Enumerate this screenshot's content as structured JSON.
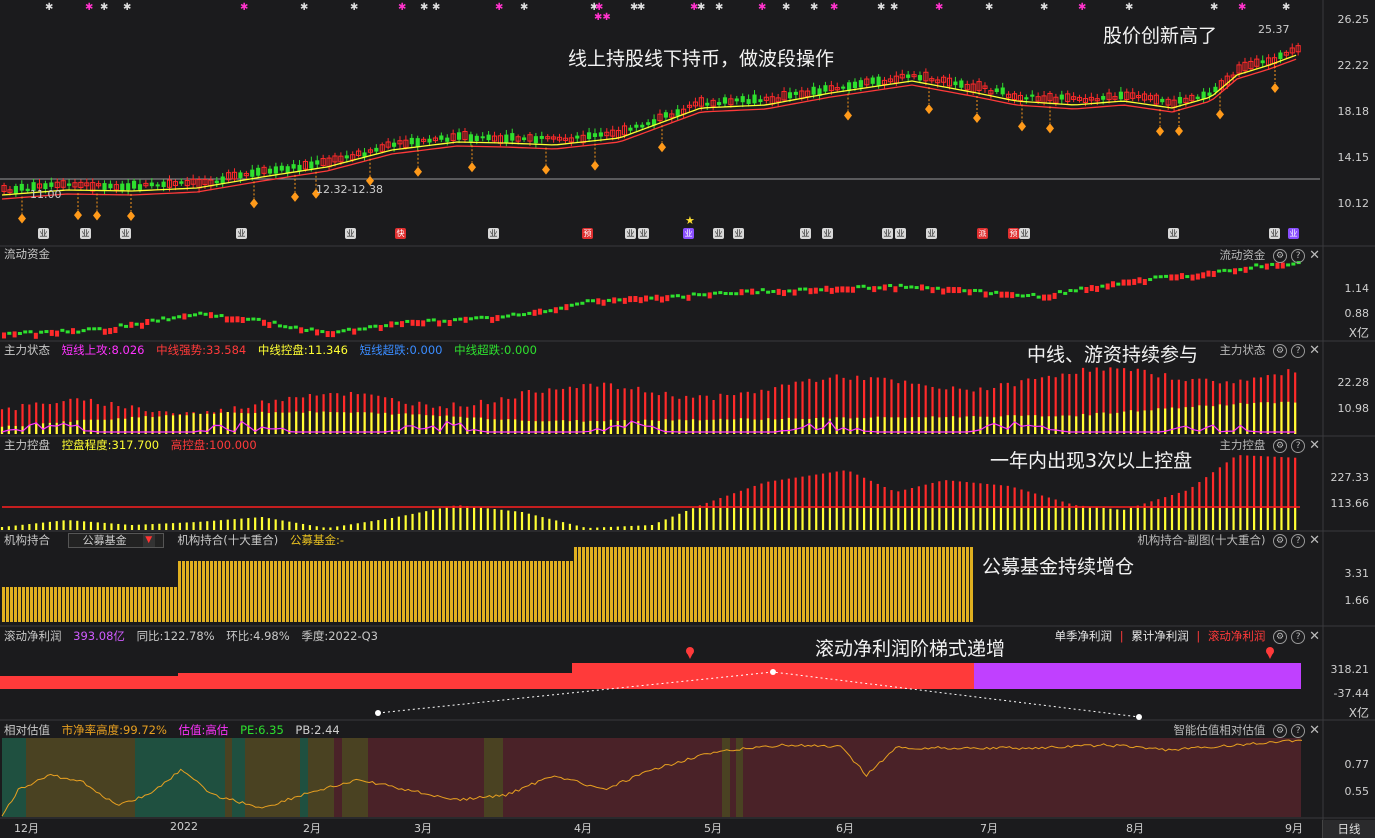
{
  "colors": {
    "up": "#ff2a2a",
    "down": "#2ee02e",
    "ma_fast": "#ffff33",
    "ma_slow": "#ff3a3a",
    "bg": "#1b1b1d"
  },
  "price_panel": {
    "axis": [
      "26.25",
      "22.22",
      "18.18",
      "14.15",
      "10.12"
    ],
    "high_label": "25.37",
    "low_label": "11.00",
    "range_label": "12.32-12.38",
    "annot_1": "线上持股线下持币，做波段操作",
    "annot_2": "股价创新高了",
    "event_badges": [
      "业",
      "业",
      "业",
      "业",
      "业",
      "快",
      "业",
      "预",
      "业",
      "业",
      "业",
      "业",
      "业",
      "业",
      "业",
      "业",
      "业",
      "业",
      "派",
      "预",
      "业",
      "业",
      "业",
      "业"
    ]
  },
  "liquid_panel": {
    "title": "流动资金",
    "right_title": "流动资金",
    "axis": [
      "1.14",
      "0.88"
    ],
    "unit": "X亿"
  },
  "main_state_panel": {
    "title": "主力状态",
    "right_title": "主力状态",
    "fields": [
      {
        "label": "短线上攻:8.026",
        "color": "#ff33ff"
      },
      {
        "label": "中线强势:33.584",
        "color": "#ff3a3a"
      },
      {
        "label": "中线控盘:11.346",
        "color": "#ffff33"
      },
      {
        "label": "短线超跌:0.000",
        "color": "#3a8cff"
      },
      {
        "label": "中线超跌:0.000",
        "color": "#2ee02e"
      }
    ],
    "axis": [
      "22.28",
      "10.98"
    ],
    "annot": "中线、游资持续参与"
  },
  "control_panel": {
    "title": "主力控盘",
    "right_title": "主力控盘",
    "fields": [
      {
        "label": "控盘程度:317.700",
        "color": "#ffff33"
      },
      {
        "label": "高控盘:100.000",
        "color": "#ff3a3a"
      }
    ],
    "axis": [
      "227.33",
      "113.66"
    ],
    "annot": "一年内出现3次以上控盘"
  },
  "inst_panel": {
    "title": "机构持合",
    "dropdown_value": "公募基金",
    "subtitle": "机构持合(十大重合)",
    "fund_label": "公募基金:-",
    "right_title": "机构持合-副图(十大重合)",
    "axis": [
      "3.31",
      "1.66"
    ],
    "annot": "公募基金持续增仓"
  },
  "profit_panel": {
    "title": "滚动净利润",
    "value": "393.08亿",
    "yoy": "同比:122.78%",
    "qoq": "环比:4.98%",
    "season": "季度:2022-Q3",
    "tabs": [
      "单季净利润",
      "累计净利润",
      "滚动净利润"
    ],
    "axis": [
      "318.21",
      "-37.44"
    ],
    "unit": "X亿",
    "annot": "滚动净利润阶梯式递增"
  },
  "valuation_panel": {
    "title": "相对估值",
    "pb_height": "市净率高度:99.72%",
    "valuation": "估值:高估",
    "pe": "PE:6.35",
    "pb": "PB:2.44",
    "right_title": "智能估值相对估值",
    "axis": [
      "0.77",
      "0.55"
    ]
  },
  "x_axis": [
    "12月",
    "2022",
    "2月",
    "3月",
    "4月",
    "5月",
    "6月",
    "7月",
    "8月",
    "9月"
  ],
  "footer_tab": "日线"
}
